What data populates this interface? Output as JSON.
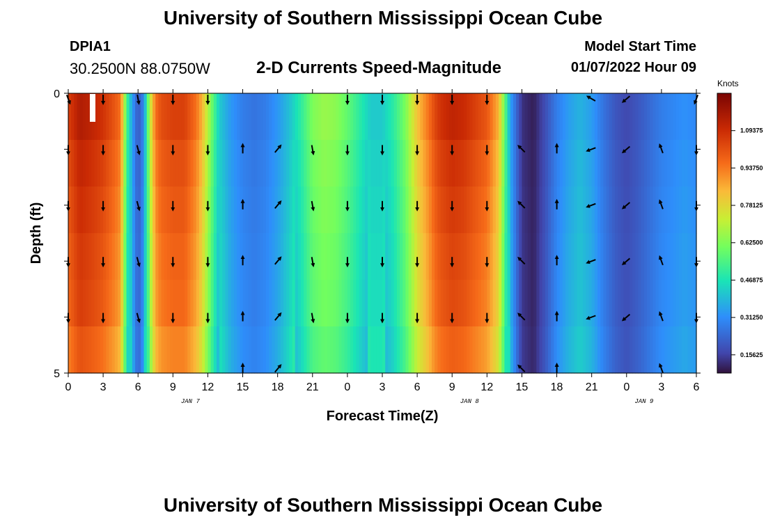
{
  "page": {
    "title": "University of Southern Mississippi Ocean Cube",
    "title_repeat": "University of Southern Mississippi Ocean Cube",
    "station_id": "DPIA1",
    "station_coords": "30.2500N  88.0750W",
    "plot_title": "2-D Currents Speed-Magnitude",
    "model_start_label": "Model Start Time",
    "model_start_value": "01/07/2022 Hour 09"
  },
  "chart_data": {
    "type": "heatmap",
    "title": "2-D Currents Speed-Magnitude",
    "xlabel": "Forecast Time(Z)",
    "ylabel": "Depth (ft)",
    "units_label": "Knots",
    "x_ticks": [
      "0",
      "3",
      "6",
      "9",
      "12",
      "15",
      "18",
      "21",
      "0",
      "3",
      "6",
      "9",
      "12",
      "15",
      "18",
      "21",
      "0",
      "3",
      "6"
    ],
    "day_labels": [
      {
        "text": "JAN 7",
        "at_index": 3.5
      },
      {
        "text": "JAN 8",
        "at_index": 11.5
      },
      {
        "text": "JAN 9",
        "at_index": 16.5
      }
    ],
    "y_ticks": [
      "0",
      "5"
    ],
    "y_range_ft": [
      0,
      5
    ],
    "x_range_hours": [
      0,
      54
    ],
    "colorbar_ticks": [
      "0.15625",
      "0.31250",
      "0.46875",
      "0.62500",
      "0.78125",
      "0.93750",
      "1.09375"
    ],
    "color_range_knots": [
      0.08,
      1.25
    ],
    "surface_speed_profile": {
      "hours": [
        0,
        1,
        2,
        3,
        4,
        4.5,
        5,
        5.5,
        6,
        6.5,
        7,
        7.5,
        8,
        9,
        10,
        11,
        11.5,
        12,
        12.5,
        13,
        14,
        15,
        16,
        17,
        18,
        19,
        20,
        21,
        22,
        23,
        24,
        25,
        26,
        27,
        28,
        29,
        30,
        31,
        31.5,
        32,
        33,
        34,
        35,
        36,
        37,
        37.5,
        38,
        39,
        40,
        41,
        42,
        43,
        44,
        45,
        46,
        47,
        48,
        49,
        50,
        51,
        52,
        53,
        54
      ],
      "knots": [
        1.05,
        1.15,
        1.12,
        1.08,
        1.0,
        0.95,
        0.55,
        0.34,
        0.2,
        0.3,
        0.7,
        0.95,
        1.02,
        1.05,
        1.05,
        0.95,
        0.85,
        0.7,
        0.55,
        0.42,
        0.33,
        0.28,
        0.26,
        0.28,
        0.33,
        0.4,
        0.5,
        0.62,
        0.66,
        0.64,
        0.58,
        0.5,
        0.42,
        0.42,
        0.5,
        0.62,
        0.82,
        0.95,
        1.03,
        1.08,
        1.12,
        1.1,
        1.05,
        1.0,
        0.85,
        0.6,
        0.35,
        0.13,
        0.1,
        0.18,
        0.28,
        0.34,
        0.38,
        0.34,
        0.26,
        0.2,
        0.17,
        0.2,
        0.24,
        0.28,
        0.3,
        0.32,
        0.3
      ]
    },
    "depth_rows": 6,
    "depth_speed_factors": [
      1.0,
      0.97,
      0.95,
      0.93,
      0.92,
      0.88
    ],
    "arrow_columns_hours": [
      0,
      3,
      6,
      9,
      12,
      15,
      18,
      21,
      24,
      27,
      30,
      33,
      36,
      39,
      42,
      45,
      48,
      51,
      54
    ],
    "arrow_rows_ft": [
      0,
      1,
      2,
      3,
      4,
      5
    ],
    "arrow_directions_deg": [
      180,
      180,
      165,
      180,
      180,
      0,
      40,
      170,
      180,
      180,
      180,
      180,
      180,
      315,
      0,
      250,
      230,
      340,
      180
    ],
    "surface_arrow_directions_deg": [
      160,
      180,
      170,
      180,
      180,
      null,
      null,
      null,
      180,
      180,
      180,
      180,
      180,
      null,
      null,
      300,
      230,
      null,
      200
    ]
  }
}
